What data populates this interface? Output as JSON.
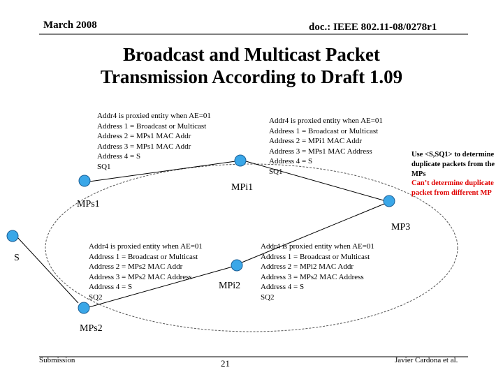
{
  "header": {
    "date": "March 2008",
    "doc": "doc.: IEEE 802.11-08/0278r1"
  },
  "title": {
    "line1": "Broadcast and Multicast Packet",
    "line2": "Transmission According to Draft 1.09"
  },
  "boxes": {
    "mps1_to_mpi1": [
      "Addr4 is proxied entity when AE=01",
      "Address 1 = Broadcast or Multicast",
      "Address 2 = MPs1 MAC Addr",
      "Address 3 = MPs1 MAC Addr",
      "Address 4 = S",
      "SQ1"
    ],
    "mpi1_to_mp3": [
      "Addr4 is proxied entity when AE=01",
      "Address 1 = Broadcast or Multicast",
      "Address 2 = MPi1 MAC Addr",
      "Address 3 = MPs1 MAC Address",
      "Address 4 = S",
      "SQ1"
    ],
    "mps2_to_mpi2": [
      "Addr4 is proxied entity when AE=01",
      "Address 1 = Broadcast or Multicast",
      "Address 2 = MPs2 MAC Addr",
      "Address 3 = MPs2 MAC Address",
      "Address 4 = S",
      "SQ2"
    ],
    "mpi2_to_mp3": [
      "Addr4 is proxied entity when AE=01",
      "Address 1 = Broadcast or Multicast",
      "Address 2 = MPi2 MAC Addr",
      "Address 3 = MPs2 MAC Address",
      "Address 4 = S",
      "SQ2"
    ]
  },
  "note": {
    "line1": "Use <S,SQ1> to determine",
    "line2": "duplicate packets from the",
    "line3": "MPs",
    "red1": "Can’t determine duplicate",
    "red2": "packet from different MP"
  },
  "nodes": {
    "mps1": "MPs1",
    "mpi1": "MPi1",
    "mp3": "MP3",
    "s": "S",
    "mpi2": "MPi2",
    "mps2": "MPs2"
  },
  "footer": {
    "left": "Submission",
    "page": "21",
    "author": "Javier Cardona et al."
  },
  "colors": {
    "node_fill": "#3aa7e8",
    "line": "#000000",
    "red": "#e00000"
  }
}
